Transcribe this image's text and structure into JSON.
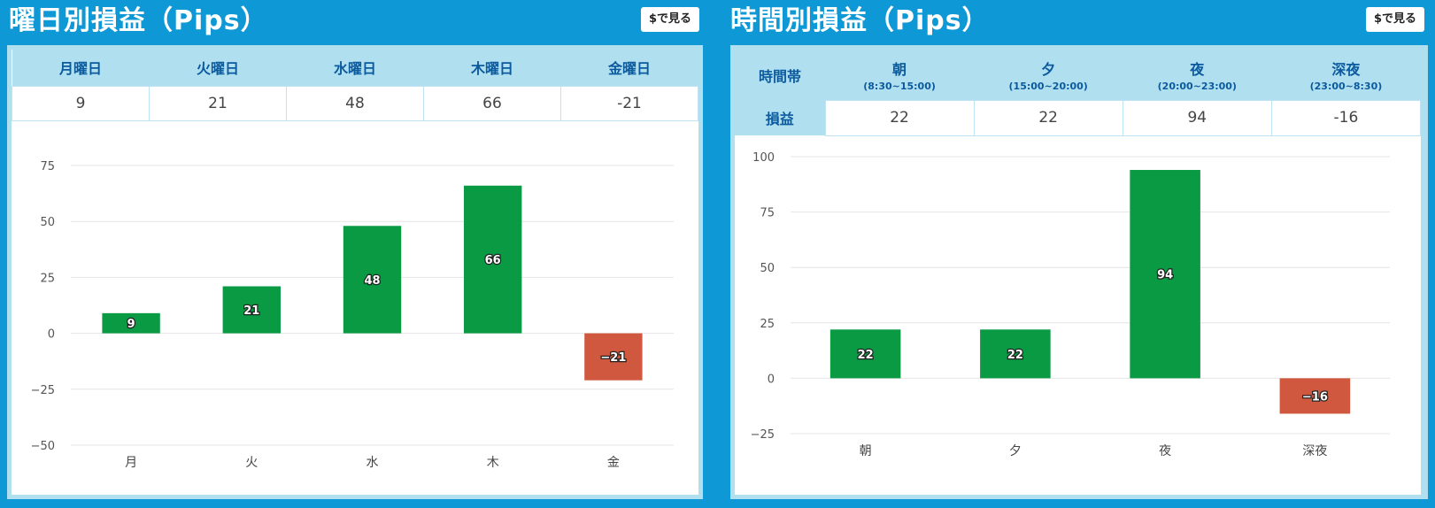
{
  "panel_day": {
    "title": "曜日別損益（Pips）",
    "usd_button": "$で見る",
    "headers": [
      "月曜日",
      "火曜日",
      "水曜日",
      "木曜日",
      "金曜日"
    ],
    "values": [
      "9",
      "21",
      "48",
      "66",
      "-21"
    ]
  },
  "panel_time": {
    "title": "時間別損益（Pips）",
    "usd_button": "$で見る",
    "row_header_slot": "時間帯",
    "row_header_pl": "損益",
    "headers": [
      {
        "label": "朝",
        "range": "(8:30~15:00)"
      },
      {
        "label": "夕",
        "range": "(15:00~20:00)"
      },
      {
        "label": "夜",
        "range": "(20:00~23:00)"
      },
      {
        "label": "深夜",
        "range": "(23:00~8:30)"
      }
    ],
    "values": [
      "22",
      "22",
      "94",
      "-16"
    ]
  },
  "colors": {
    "background": "#0e98d6",
    "header_bg": "#b0e0f0",
    "header_text": "#0c5a9e",
    "positive_bar": "#0a9a44",
    "negative_bar": "#d0583e"
  },
  "chart_data": [
    {
      "type": "bar",
      "categories": [
        "月",
        "火",
        "水",
        "木",
        "金"
      ],
      "values": [
        9,
        21,
        48,
        66,
        -21
      ],
      "ylim": [
        -50,
        75
      ],
      "yticks": [
        75,
        50,
        25,
        0,
        -25,
        -50
      ],
      "data_labels": true,
      "grid": true
    },
    {
      "type": "bar",
      "categories": [
        "朝",
        "夕",
        "夜",
        "深夜"
      ],
      "values": [
        22,
        22,
        94,
        -16
      ],
      "ylim": [
        -25,
        100
      ],
      "yticks": [
        100,
        75,
        50,
        25,
        0,
        -25
      ],
      "data_labels": true,
      "grid": true
    }
  ]
}
